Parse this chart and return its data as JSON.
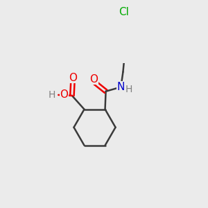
{
  "bg_color": "#ebebeb",
  "bond_color": "#3a3a3a",
  "atom_colors": {
    "O": "#ee0000",
    "N": "#0000cc",
    "Cl": "#00aa00",
    "H": "#808080",
    "C": "#3a3a3a"
  },
  "bond_width": 1.8,
  "font_size": 10,
  "figsize": [
    3.0,
    3.0
  ],
  "dpi": 100
}
